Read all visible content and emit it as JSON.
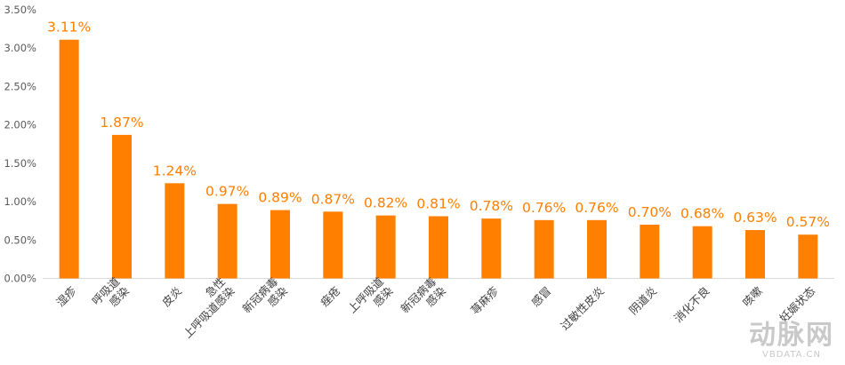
{
  "chart_data": {
    "type": "bar",
    "title": "",
    "xlabel": "",
    "ylabel": "",
    "ylim": [
      0,
      3.5
    ],
    "yticks": [
      "0.00%",
      "0.50%",
      "1.00%",
      "1.50%",
      "2.00%",
      "2.50%",
      "3.00%",
      "3.50%"
    ],
    "grid": false,
    "bar_color": "#FF7F00",
    "label_color": "#FF7F00",
    "categories": [
      [
        "湿疹"
      ],
      [
        "呼吸道",
        "感染"
      ],
      [
        "皮炎"
      ],
      [
        "急性",
        "上呼吸道感染"
      ],
      [
        "新冠病毒",
        "感染"
      ],
      [
        "痤疮"
      ],
      [
        "上呼吸道",
        "感染"
      ],
      [
        "新冠病毒",
        "感染"
      ],
      [
        "荨麻疹"
      ],
      [
        "感冒"
      ],
      [
        "过敏性皮炎"
      ],
      [
        "阴道炎"
      ],
      [
        "消化不良"
      ],
      [
        "咳嗽"
      ],
      [
        "妊娠状态"
      ]
    ],
    "values": [
      3.11,
      1.87,
      1.24,
      0.97,
      0.89,
      0.87,
      0.82,
      0.81,
      0.78,
      0.76,
      0.76,
      0.7,
      0.68,
      0.63,
      0.57
    ],
    "data_labels": [
      "3.11%",
      "1.87%",
      "1.24%",
      "0.97%",
      "0.89%",
      "0.87%",
      "0.82%",
      "0.81%",
      "0.78%",
      "0.76%",
      "0.76%",
      "0.70%",
      "0.68%",
      "0.63%",
      "0.57%"
    ]
  },
  "watermark": {
    "logo": "动脉网",
    "sub": "VBDATA.CN",
    "color": "#c9c9c9"
  }
}
